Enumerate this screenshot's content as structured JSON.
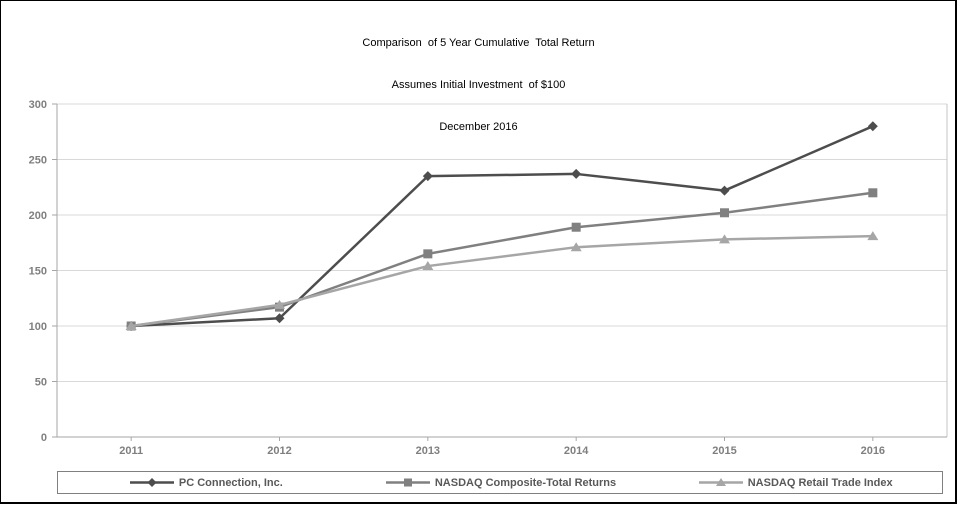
{
  "title": {
    "line1": "Comparison  of 5 Year Cumulative  Total Return",
    "line2": "Assumes Initial Investment  of $100",
    "line3": "December 2016"
  },
  "chart_data": {
    "type": "line",
    "title": "Comparison of 5 Year Cumulative Total Return",
    "subtitle": "Assumes Initial Investment of $100",
    "date_label": "December 2016",
    "categories": [
      "2011",
      "2012",
      "2013",
      "2014",
      "2015",
      "2016"
    ],
    "series": [
      {
        "name": "PC Connection, Inc.",
        "marker": "diamond",
        "color": "#4d4d4d",
        "values": [
          100,
          107,
          235,
          237,
          222,
          280
        ]
      },
      {
        "name": "NASDAQ Composite-Total Returns",
        "marker": "square",
        "color": "#808080",
        "values": [
          100,
          117,
          165,
          189,
          202,
          220
        ]
      },
      {
        "name": "NASDAQ Retail Trade Index",
        "marker": "triangle",
        "color": "#a6a6a6",
        "values": [
          100,
          119,
          154,
          171,
          178,
          181
        ]
      }
    ],
    "xlabel": "",
    "ylabel": "",
    "ylim": [
      0,
      300
    ],
    "yticks": [
      0,
      50,
      100,
      150,
      200,
      250,
      300
    ],
    "grid": "horizontal",
    "legend_position": "bottom",
    "colors": {
      "gridline": "#d9d9d9",
      "axis": "#a6a6a6",
      "plot_border": "#c6c6c6",
      "tick_text": "#7f7f7f",
      "legend_text": "#595959",
      "title_text": "#000000",
      "frame_border": "#000000",
      "legend_border": "#808080",
      "background": "#ffffff"
    }
  }
}
